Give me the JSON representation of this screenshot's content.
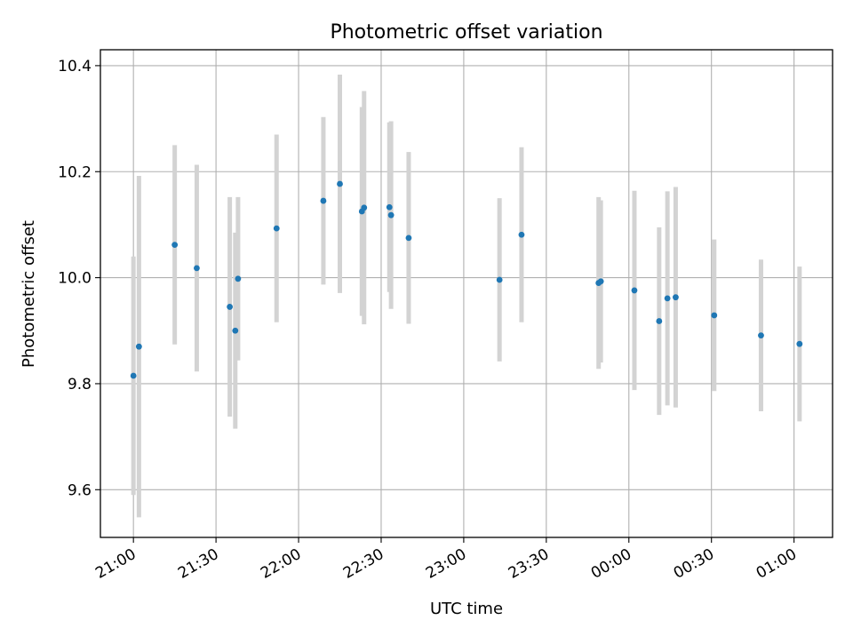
{
  "chart_data": {
    "type": "scatter",
    "title": "Photometric offset variation",
    "xlabel": "UTC time",
    "ylabel": "Photometric offset",
    "x_ticks": [
      "21:00",
      "21:30",
      "22:00",
      "22:30",
      "23:00",
      "23:30",
      "00:00",
      "00:30",
      "01:00"
    ],
    "y_ticks": [
      "9.6",
      "9.8",
      "10.0",
      "10.2",
      "10.4"
    ],
    "xlim": [
      "20:48",
      "01:14"
    ],
    "ylim": [
      9.51,
      10.43
    ],
    "grid": true,
    "marker_color": "#1f77b4",
    "errorbar_color": "#d3d3d3",
    "points": [
      {
        "x": "21:00",
        "y": 9.815,
        "yerr": 0.225
      },
      {
        "x": "21:02",
        "y": 9.87,
        "yerr": 0.322
      },
      {
        "x": "21:15",
        "y": 10.062,
        "yerr": 0.188
      },
      {
        "x": "21:23",
        "y": 10.018,
        "yerr": 0.195
      },
      {
        "x": "21:35",
        "y": 9.945,
        "yerr": 0.207
      },
      {
        "x": "21:37",
        "y": 9.9,
        "yerr": 0.185
      },
      {
        "x": "21:38",
        "y": 9.998,
        "yerr": 0.154
      },
      {
        "x": "21:52",
        "y": 10.093,
        "yerr": 0.177
      },
      {
        "x": "22:09",
        "y": 10.145,
        "yerr": 0.158
      },
      {
        "x": "22:15",
        "y": 10.177,
        "yerr": 0.206
      },
      {
        "x": "22:23",
        "y": 10.125,
        "yerr": 0.197
      },
      {
        "x": "22:23.8",
        "y": 10.132,
        "yerr": 0.22
      },
      {
        "x": "22:33",
        "y": 10.133,
        "yerr": 0.16
      },
      {
        "x": "22:33.6",
        "y": 10.118,
        "yerr": 0.177
      },
      {
        "x": "22:40",
        "y": 10.075,
        "yerr": 0.162
      },
      {
        "x": "23:13",
        "y": 9.996,
        "yerr": 0.154
      },
      {
        "x": "23:21",
        "y": 10.081,
        "yerr": 0.165
      },
      {
        "x": "23:49",
        "y": 9.99,
        "yerr": 0.162
      },
      {
        "x": "23:49.8",
        "y": 9.993,
        "yerr": 0.153
      },
      {
        "x": "00:02",
        "y": 9.976,
        "yerr": 0.188
      },
      {
        "x": "00:11",
        "y": 9.918,
        "yerr": 0.177
      },
      {
        "x": "00:14",
        "y": 9.961,
        "yerr": 0.202
      },
      {
        "x": "00:17",
        "y": 9.963,
        "yerr": 0.208
      },
      {
        "x": "00:31",
        "y": 9.929,
        "yerr": 0.143
      },
      {
        "x": "00:48",
        "y": 9.891,
        "yerr": 0.143
      },
      {
        "x": "01:02",
        "y": 9.875,
        "yerr": 0.146
      }
    ]
  }
}
